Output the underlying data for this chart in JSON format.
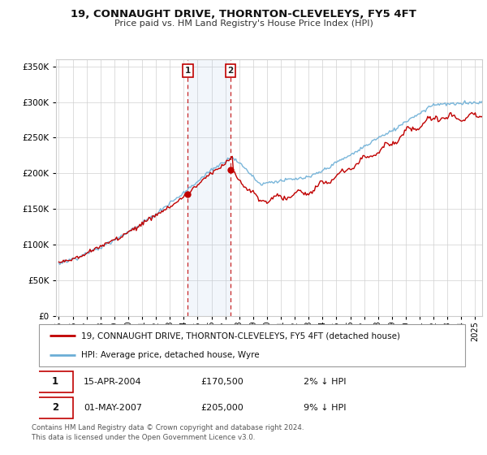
{
  "title": "19, CONNAUGHT DRIVE, THORNTON-CLEVELEYS, FY5 4FT",
  "subtitle": "Price paid vs. HM Land Registry's House Price Index (HPI)",
  "legend_entry1": "19, CONNAUGHT DRIVE, THORNTON-CLEVELEYS, FY5 4FT (detached house)",
  "legend_entry2": "HPI: Average price, detached house, Wyre",
  "sale1_date": "15-APR-2004",
  "sale1_price": "£170,500",
  "sale1_hpi": "2% ↓ HPI",
  "sale2_date": "01-MAY-2007",
  "sale2_price": "£205,000",
  "sale2_hpi": "9% ↓ HPI",
  "footer": "Contains HM Land Registry data © Crown copyright and database right 2024.\nThis data is licensed under the Open Government Licence v3.0.",
  "hpi_color": "#6baed6",
  "price_color": "#c00000",
  "sale1_x": 2004.29,
  "sale1_y": 170500,
  "sale2_x": 2007.37,
  "sale2_y": 205000,
  "ylim": [
    0,
    360000
  ],
  "xlim_start": 1994.8,
  "xlim_end": 2025.5
}
